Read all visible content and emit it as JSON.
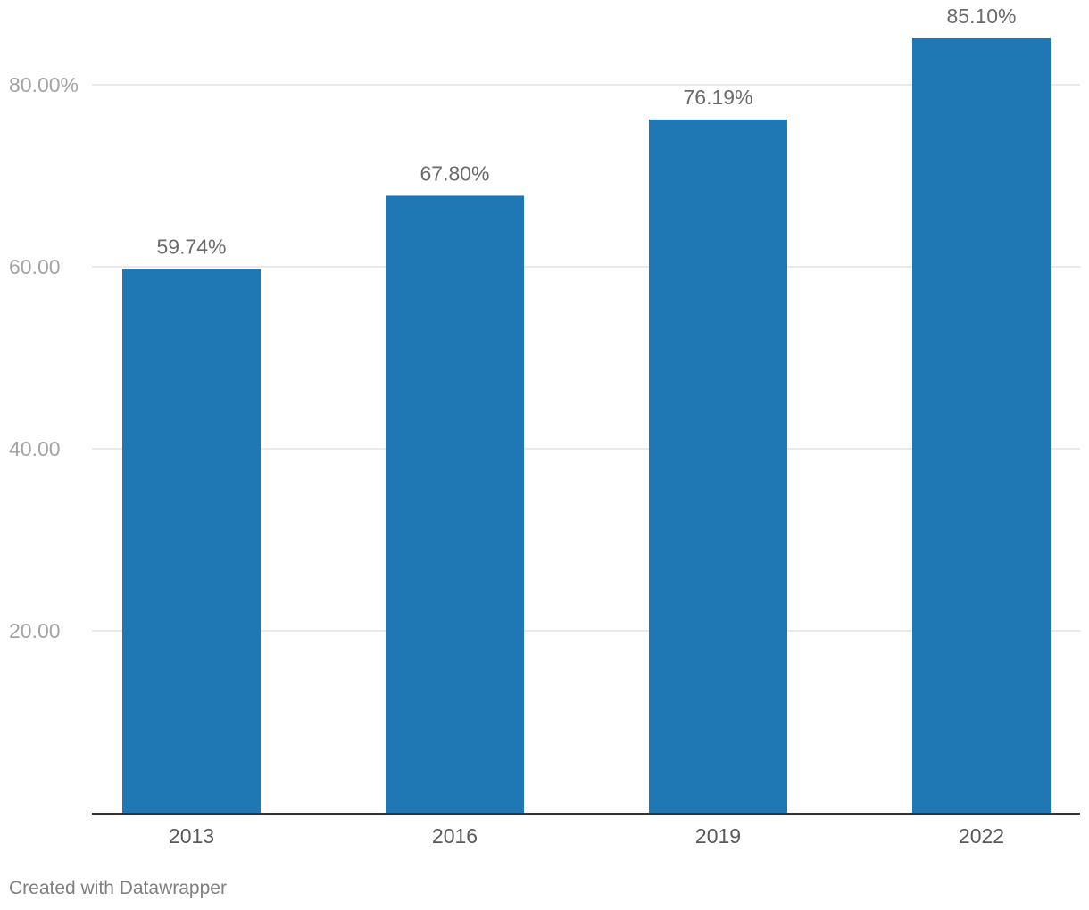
{
  "chart_data": {
    "type": "bar",
    "categories": [
      "2013",
      "2016",
      "2019",
      "2022"
    ],
    "values": [
      59.74,
      67.8,
      76.19,
      85.1
    ],
    "value_labels": [
      "59.74%",
      "67.80%",
      "76.19%",
      "85.10%"
    ],
    "title": "",
    "xlabel": "",
    "ylabel": "",
    "ylim": [
      0,
      85.1
    ],
    "y_ticks": [
      20,
      40,
      60,
      80
    ],
    "y_tick_labels": [
      "20.00",
      "40.00",
      "60.00",
      "80.00%"
    ],
    "grid": true,
    "bar_color": "#1f78b4"
  },
  "footer": {
    "credit": "Created with Datawrapper"
  }
}
